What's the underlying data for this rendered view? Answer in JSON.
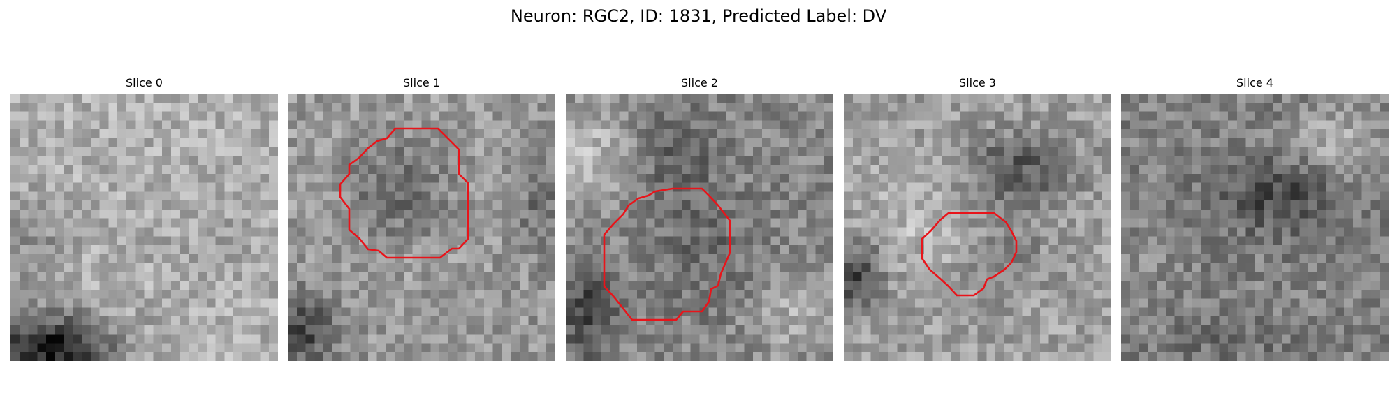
{
  "figure": {
    "title": "Neuron: RGC2, ID: 1831, Predicted Label: DV",
    "contour_color": "#e8141a"
  },
  "panels": [
    {
      "title": "Slice 0",
      "has_contour": false
    },
    {
      "title": "Slice 1",
      "has_contour": true
    },
    {
      "title": "Slice 2",
      "has_contour": true
    },
    {
      "title": "Slice 3",
      "has_contour": true
    },
    {
      "title": "Slice 4",
      "has_contour": false
    }
  ]
}
